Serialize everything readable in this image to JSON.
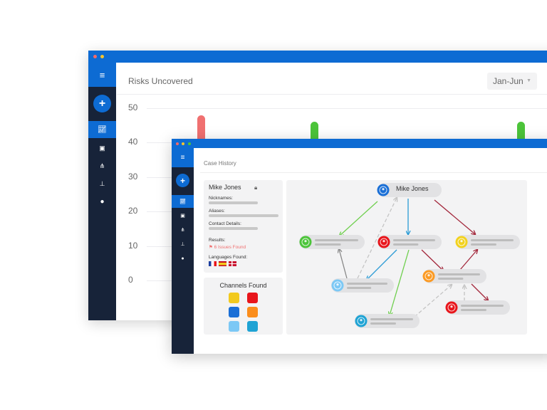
{
  "back_window": {
    "title": "Risks Uncovered",
    "period_select": {
      "value": "Jan-Jun"
    },
    "sidebar": {
      "menu_icon": "hamburger-icon",
      "add_icon": "plus-icon",
      "items": [
        "chart-icon",
        "layers-icon",
        "network-icon",
        "hierarchy-icon",
        "user-icon"
      ]
    },
    "colors": {
      "accent": "#0d6bd3",
      "sidebar": "#172339"
    }
  },
  "chart_data": {
    "type": "bar",
    "yticks": [
      "50",
      "40",
      "30",
      "20",
      "10",
      "0"
    ],
    "ylim": [
      0,
      50
    ],
    "grid": true,
    "series": [
      {
        "values": [
          48,
          46,
          46
        ],
        "colors": [
          "#f07070",
          "#4cc43a",
          "#4cc43a"
        ]
      }
    ]
  },
  "front_window": {
    "title": "Case History",
    "profile": {
      "name": "Mike Jones",
      "lock_icon": "lock-icon",
      "nicknames_label": "Nicknames:",
      "aliases_label": "Aliases:",
      "contact_label": "Contact Details:",
      "results_label": "Results:",
      "results_value": "6 Issues Found",
      "languages_label": "Languages Found:",
      "languages": [
        "French flag",
        "Spanish flag",
        "Danish flag"
      ]
    },
    "channels": {
      "title": "Channels Found",
      "colors": [
        "#f2c91e",
        "#e8151b",
        "#1a6fd6",
        "#fb8d1c",
        "#7cc8f5",
        "#1fa3d4"
      ]
    },
    "graph": {
      "root": "Mike Jones",
      "node_colors": {
        "root": "#1a6fd6",
        "green": "#4cc43a",
        "red": "#e8151b",
        "yellow": "#f2d21e",
        "orange": "#fb9a23",
        "lightblue": "#7cc8f5",
        "red2": "#e8151b",
        "cyan": "#1fa3d4"
      }
    }
  }
}
